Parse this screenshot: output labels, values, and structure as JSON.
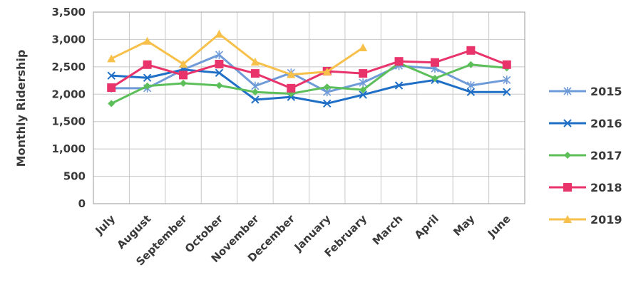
{
  "chart_data": {
    "type": "line",
    "title": "",
    "xlabel": "",
    "ylabel": "Monthly Ridership",
    "ylim": [
      0,
      3500
    ],
    "yticks": [
      0,
      500,
      1000,
      1500,
      2000,
      2500,
      3000,
      3500
    ],
    "ytick_labels": [
      "0",
      "500",
      "1,000",
      "1,500",
      "2,000",
      "2,500",
      "3,000",
      "3,500"
    ],
    "grid": true,
    "legend_position": "right",
    "categories": [
      "July",
      "August",
      "September",
      "October",
      "November",
      "December",
      "January",
      "February",
      "March",
      "April",
      "May",
      "June"
    ],
    "series": [
      {
        "name": "2015",
        "color": "#6f9bd8",
        "marker": "asterisk",
        "values": [
          2110,
          2110,
          2450,
          2720,
          2150,
          2390,
          2040,
          2210,
          2520,
          2470,
          2160,
          2260
        ]
      },
      {
        "name": "2016",
        "color": "#1f6fc6",
        "marker": "x",
        "values": [
          2340,
          2300,
          2450,
          2390,
          1900,
          1950,
          1830,
          1990,
          2160,
          2260,
          2040,
          2040
        ]
      },
      {
        "name": "2017",
        "color": "#5cbf5a",
        "marker": "diamond",
        "values": [
          1830,
          2150,
          2200,
          2160,
          2040,
          2010,
          2130,
          2080,
          2570,
          2290,
          2540,
          2480
        ]
      },
      {
        "name": "2018",
        "color": "#e8336b",
        "marker": "square",
        "values": [
          2120,
          2540,
          2350,
          2550,
          2380,
          2110,
          2420,
          2380,
          2600,
          2580,
          2800,
          2540
        ]
      },
      {
        "name": "2019",
        "color": "#f7c04a",
        "marker": "triangle",
        "values": [
          2650,
          2970,
          2550,
          3100,
          2590,
          2360,
          2410,
          2850,
          null,
          null,
          null,
          null
        ]
      }
    ]
  }
}
